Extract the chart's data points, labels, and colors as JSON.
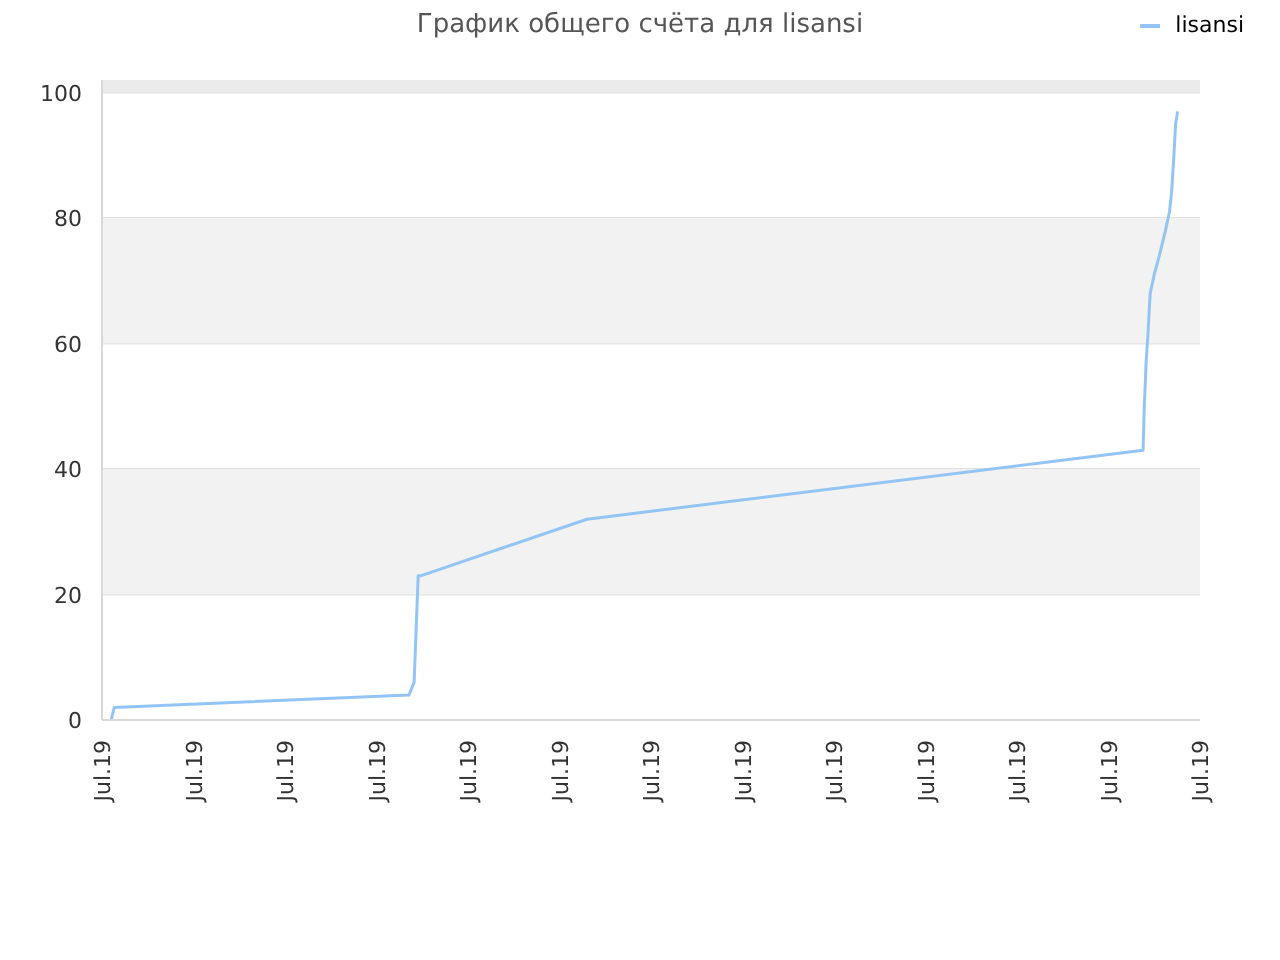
{
  "chart_data": {
    "type": "line",
    "title": "График общего счёта для lisansi",
    "x": [
      "--07-19T05:09",
      "--07-19T05:12",
      "--07-19T10:02",
      "--07-19T10:07",
      "--07-19T10:11",
      "--07-19T10:14",
      "--07-19T12:57",
      "--07-19T22:04",
      "--07-19T22:05",
      "--07-19T22:07",
      "--07-19T22:09",
      "--07-19T22:11",
      "--07-19T22:15",
      "--07-19T22:20",
      "--07-19T22:26",
      "--07-19T22:30",
      "--07-19T22:32",
      "--07-19T22:34",
      "--07-19T22:36",
      "--07-19T22:38"
    ],
    "series": [
      {
        "name": "lisansi",
        "color": "#92c5f5",
        "values": [
          0,
          2,
          4,
          6,
          23,
          23,
          32,
          43,
          49,
          57,
          62,
          68,
          71,
          74,
          78,
          81,
          84,
          89,
          95,
          97
        ]
      }
    ],
    "xlim": [
      "--07-19T05:00",
      "--07-19T23:00"
    ],
    "xticks": [
      {
        "value": "--07-19T05:00",
        "label": "Jul.19"
      },
      {
        "value": "--07-19T06:30",
        "label": "Jul.19"
      },
      {
        "value": "--07-19T08:00",
        "label": "Jul.19"
      },
      {
        "value": "--07-19T09:30",
        "label": "Jul.19"
      },
      {
        "value": "--07-19T11:00",
        "label": "Jul.19"
      },
      {
        "value": "--07-19T12:30",
        "label": "Jul.19"
      },
      {
        "value": "--07-19T14:00",
        "label": "Jul.19"
      },
      {
        "value": "--07-19T15:30",
        "label": "Jul.19"
      },
      {
        "value": "--07-19T17:00",
        "label": "Jul.19"
      },
      {
        "value": "--07-19T18:30",
        "label": "Jul.19"
      },
      {
        "value": "--07-19T20:00",
        "label": "Jul.19"
      },
      {
        "value": "--07-19T21:30",
        "label": "Jul.19"
      },
      {
        "value": "--07-19T23:00",
        "label": "Jul.19"
      }
    ],
    "ylim": [
      0,
      102
    ],
    "yticks": [
      0,
      20,
      40,
      60,
      80,
      100
    ],
    "bands": [
      {
        "axis": "y",
        "from": 20,
        "to": 40,
        "color": "#f2f2f2"
      },
      {
        "axis": "y",
        "from": 60,
        "to": 80,
        "color": "#f2f2f2"
      },
      {
        "axis": "y",
        "from": 100,
        "to": 102,
        "color": "#ebebeb"
      }
    ],
    "grid": "y",
    "legend": "top right",
    "marker": "none",
    "line_style": "solid"
  }
}
